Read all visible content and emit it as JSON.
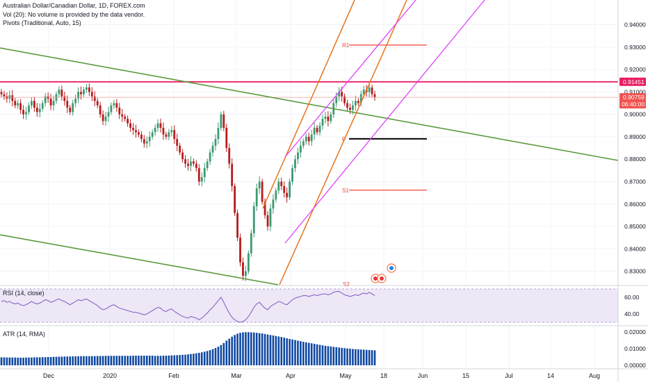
{
  "legend": {
    "title": "Australian Dollar/Canadian Dollar, 1D, FOREX.com",
    "vol": "Vol (20): No volume is provided by the data vendor.",
    "pivots": "Pivots (Traditional, Auto, 15)"
  },
  "rsi_label": "RSI (14, close)",
  "atr_label": "ATR (14, RMA)",
  "colors": {
    "up": "#26a69a",
    "down": "#ef5350",
    "candle_up": "#3d9970",
    "candle_down": "#b71c1c",
    "trend_green": "#5b9a3c",
    "channel_orange": "#e8731a",
    "channel_magenta": "#e040fb",
    "resistance": "#e91e63",
    "pivot_red": "#f44336",
    "rsi": "#7e57c2",
    "atr": "#0d47a1"
  },
  "chart_data": [
    {
      "type": "candlestick",
      "title": "Australian Dollar/Canadian Dollar, 1D, FOREX.com",
      "ylim": [
        0.824,
        0.951
      ],
      "y_ticks": [
        "0.94000",
        "0.93000",
        "0.92000",
        "0.91000",
        "0.90000",
        "0.89000",
        "0.88000",
        "0.87000",
        "0.86000",
        "0.85000",
        "0.84000",
        "0.83000"
      ],
      "x_ticks": [
        "Dec",
        "2020",
        "Feb",
        "Mar",
        "Apr",
        "May",
        "18",
        "Jun",
        "15",
        "Jul",
        "14",
        "Aug"
      ],
      "price_tags": {
        "resistance": "0.91451",
        "last": "0.90759",
        "countdown": "06:40:00"
      },
      "pivots": [
        {
          "label": "R1",
          "value": 0.9309
        },
        {
          "label": "P",
          "value": 0.8891
        },
        {
          "label": "S1",
          "value": 0.8662
        },
        {
          "label": "S2",
          "value": 0.824
        }
      ],
      "closes": [
        0.909,
        0.908,
        0.907,
        0.9085,
        0.906,
        0.904,
        0.905,
        0.902,
        0.9,
        0.901,
        0.904,
        0.906,
        0.903,
        0.901,
        0.9025,
        0.905,
        0.908,
        0.907,
        0.904,
        0.906,
        0.909,
        0.911,
        0.908,
        0.906,
        0.903,
        0.901,
        0.905,
        0.907,
        0.91,
        0.909,
        0.911,
        0.912,
        0.91,
        0.908,
        0.906,
        0.904,
        0.9,
        0.897,
        0.899,
        0.901,
        0.904,
        0.905,
        0.903,
        0.9,
        0.899,
        0.898,
        0.896,
        0.894,
        0.893,
        0.892,
        0.891,
        0.889,
        0.887,
        0.888,
        0.89,
        0.892,
        0.894,
        0.896,
        0.894,
        0.891,
        0.89,
        0.892,
        0.893,
        0.889,
        0.886,
        0.883,
        0.88,
        0.878,
        0.877,
        0.879,
        0.878,
        0.876,
        0.87,
        0.872,
        0.876,
        0.879,
        0.883,
        0.886,
        0.889,
        0.894,
        0.9,
        0.894,
        0.885,
        0.878,
        0.868,
        0.856,
        0.845,
        0.834,
        0.828,
        0.83,
        0.838,
        0.847,
        0.859,
        0.867,
        0.87,
        0.861,
        0.855,
        0.85,
        0.858,
        0.862,
        0.866,
        0.87,
        0.868,
        0.865,
        0.863,
        0.87,
        0.876,
        0.88,
        0.883,
        0.886,
        0.888,
        0.89,
        0.888,
        0.891,
        0.894,
        0.892,
        0.895,
        0.898,
        0.899,
        0.897,
        0.9,
        0.905,
        0.908,
        0.91,
        0.908,
        0.905,
        0.903,
        0.902,
        0.904,
        0.906,
        0.905,
        0.909,
        0.911,
        0.91,
        0.912,
        0.909,
        0.9076
      ]
    },
    {
      "type": "line",
      "title": "RSI (14, close)",
      "ylim": [
        30,
        70
      ],
      "y_ticks": [
        "60.00",
        "40.00"
      ],
      "band": [
        30,
        70
      ],
      "values": [
        55,
        56,
        54,
        55,
        53,
        52,
        53,
        51,
        50,
        51,
        53,
        55,
        53,
        52,
        53,
        55,
        57,
        56,
        54,
        55,
        57,
        58,
        56,
        55,
        53,
        51,
        53,
        55,
        57,
        56,
        57,
        58,
        56,
        54,
        52,
        50,
        47,
        45,
        46,
        48,
        50,
        51,
        49,
        47,
        46,
        45,
        44,
        43,
        42,
        42,
        41,
        40,
        39,
        40,
        42,
        44,
        46,
        48,
        47,
        44,
        43,
        45,
        46,
        43,
        41,
        39,
        37,
        36,
        35,
        37,
        36,
        35,
        33,
        35,
        38,
        41,
        45,
        48,
        52,
        56,
        60,
        54,
        47,
        41,
        36,
        33,
        31,
        30,
        31,
        33,
        37,
        42,
        48,
        52,
        54,
        50,
        47,
        45,
        49,
        51,
        53,
        55,
        54,
        52,
        51,
        54,
        57,
        59,
        60,
        61,
        62,
        62,
        61,
        62,
        63,
        62,
        63,
        64,
        64,
        63,
        64,
        66,
        67,
        67,
        65,
        63,
        62,
        61,
        62,
        63,
        62,
        64,
        65,
        64,
        66,
        64,
        62
      ]
    },
    {
      "type": "bar",
      "title": "ATR (14, RMA)",
      "ylim": [
        0.0,
        0.0225
      ],
      "y_ticks": [
        "0.02000",
        "0.01000",
        "0.00000"
      ],
      "values": [
        0.0048,
        0.0048,
        0.0047,
        0.0047,
        0.0047,
        0.0047,
        0.0046,
        0.0046,
        0.0046,
        0.0047,
        0.0047,
        0.0047,
        0.0048,
        0.0048,
        0.0048,
        0.0049,
        0.0049,
        0.005,
        0.005,
        0.0051,
        0.0051,
        0.0052,
        0.0052,
        0.0053,
        0.0053,
        0.0053,
        0.0054,
        0.0054,
        0.0054,
        0.0055,
        0.0055,
        0.0055,
        0.0055,
        0.0055,
        0.0055,
        0.0056,
        0.0056,
        0.0056,
        0.0057,
        0.0057,
        0.0057,
        0.0057,
        0.0057,
        0.0057,
        0.0057,
        0.0057,
        0.0057,
        0.0057,
        0.0058,
        0.0058,
        0.0058,
        0.0058,
        0.0058,
        0.0058,
        0.0058,
        0.0058,
        0.0057,
        0.0057,
        0.0057,
        0.0058,
        0.0058,
        0.0059,
        0.006,
        0.006,
        0.0061,
        0.0062,
        0.0063,
        0.0064,
        0.0066,
        0.0068,
        0.007,
        0.0072,
        0.0075,
        0.0078,
        0.0082,
        0.0086,
        0.0091,
        0.0097,
        0.0104,
        0.0112,
        0.0122,
        0.0134,
        0.0148,
        0.016,
        0.0172,
        0.0182,
        0.019,
        0.0195,
        0.0198,
        0.0199,
        0.0199,
        0.0198,
        0.0197,
        0.0195,
        0.0193,
        0.0191,
        0.0188,
        0.0185,
        0.0182,
        0.0179,
        0.0176,
        0.0173,
        0.017,
        0.0166,
        0.0162,
        0.0158,
        0.0155,
        0.0152,
        0.0148,
        0.0145,
        0.0141,
        0.0138,
        0.0135,
        0.0132,
        0.0129,
        0.0126,
        0.0123,
        0.012,
        0.0117,
        0.0115,
        0.0113,
        0.0111,
        0.0109,
        0.0107,
        0.0105,
        0.0103,
        0.0101,
        0.01,
        0.0098,
        0.0097,
        0.0096,
        0.0095,
        0.0094,
        0.0093,
        0.0092,
        0.0091,
        0.009
      ]
    }
  ]
}
